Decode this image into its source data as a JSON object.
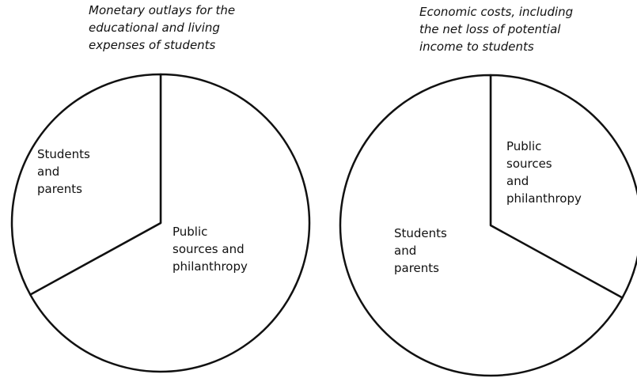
{
  "chart_data": [
    {
      "type": "pie",
      "title": "Monetary outlays for the\neducational and living\nexpenses of students",
      "categories": [
        "Public\nsources and\nphilanthropy",
        "Students\nand\nparents"
      ],
      "values": [
        67,
        33
      ]
    },
    {
      "type": "pie",
      "title": "Economic costs, including\nthe net loss of potential\nincome to students",
      "categories": [
        "Public\nsources\nand\nphilanthropy",
        "Students\nand\nparents"
      ],
      "values": [
        33,
        67
      ]
    }
  ]
}
